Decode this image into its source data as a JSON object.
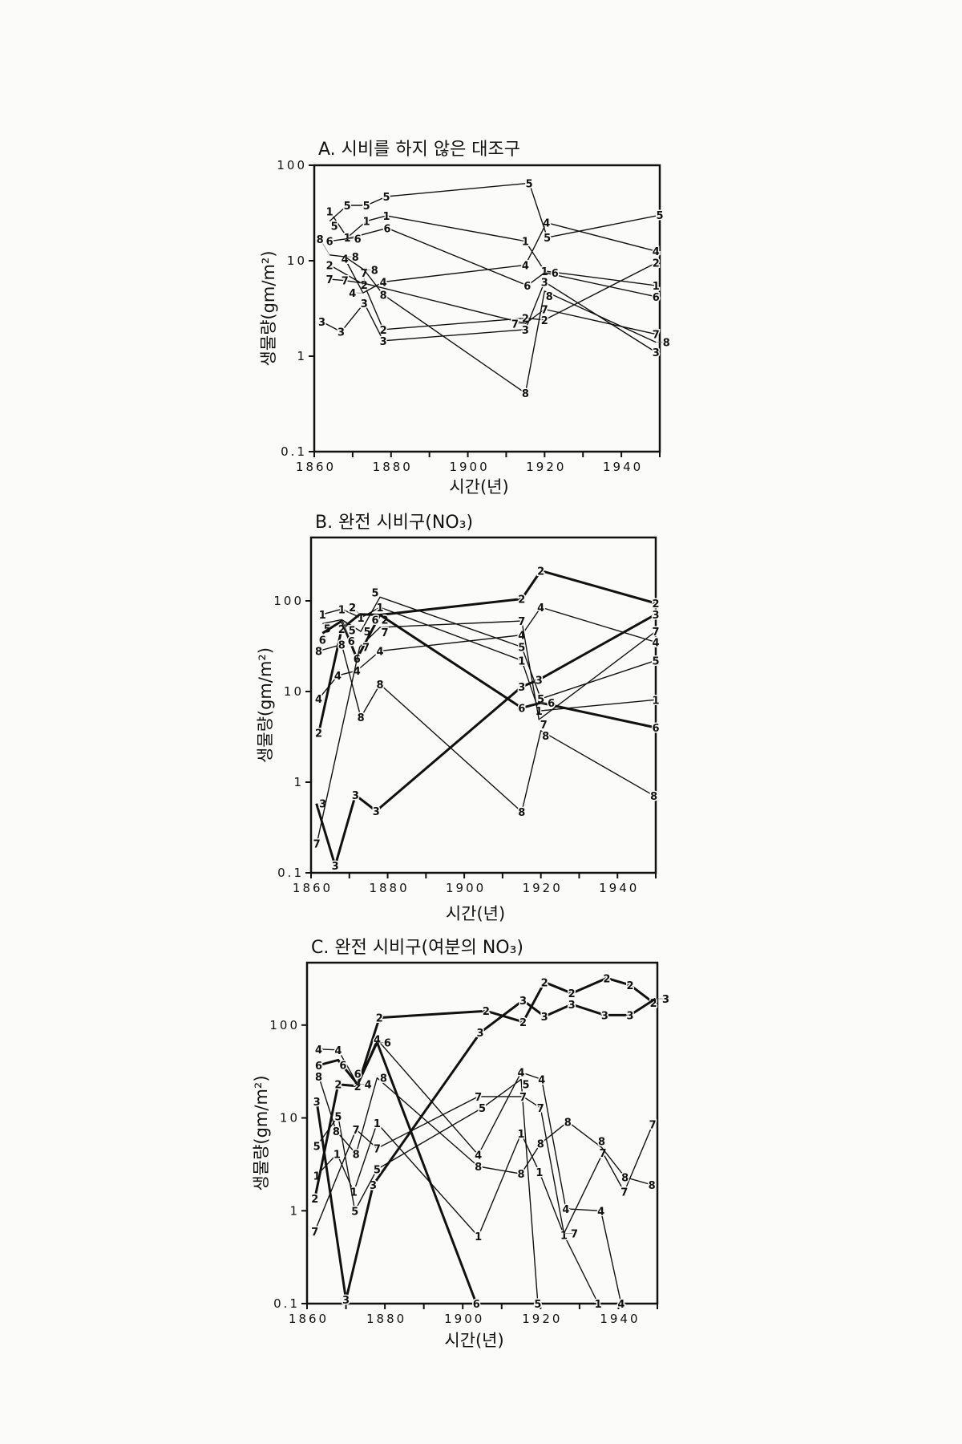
{
  "chart_data": [
    {
      "type": "line",
      "title": "A. 시비를 하지 않은 대조구",
      "xlabel": "시간(년)",
      "ylabel": "생물량(gm/m²)",
      "yscale": "log",
      "xlim": [
        1860,
        1950
      ],
      "ylim": [
        0.1,
        100
      ],
      "xticks": [
        "1860",
        "1880",
        "1900",
        "1920",
        "1940"
      ],
      "yticks": [
        "0.1",
        "1",
        "10",
        "100"
      ],
      "thick_series": [],
      "series": [
        {
          "name": "1",
          "points": [
            [
              1864,
              33
            ],
            [
              1868.6,
              17.5
            ],
            [
              1873.6,
              26
            ],
            [
              1878.8,
              29.6
            ],
            [
              1915,
              16
            ],
            [
              1920,
              7.8
            ],
            [
              1949,
              5.5
            ]
          ]
        },
        {
          "name": "2",
          "points": [
            [
              1864,
              9
            ],
            [
              1873,
              5.6
            ],
            [
              1878,
              1.9
            ],
            [
              1915,
              2.5
            ],
            [
              1920,
              2.4
            ],
            [
              1949,
              9.5
            ]
          ]
        },
        {
          "name": "3",
          "points": [
            [
              1862,
              2.3
            ],
            [
              1867,
              1.8
            ],
            [
              1873,
              3.6
            ],
            [
              1878,
              1.45
            ],
            [
              1915,
              1.9
            ],
            [
              1920,
              6
            ],
            [
              1949,
              1.1
            ]
          ]
        },
        {
          "name": "4",
          "points": [
            [
              1868,
              10.5
            ],
            [
              1872.7,
              4.6
            ],
            [
              1878,
              6
            ],
            [
              1915,
              9
            ],
            [
              1920.5,
              25
            ],
            [
              1949,
              12.6
            ]
          ]
        },
        {
          "name": "5",
          "points": [
            [
              1864,
              26
            ],
            [
              1868.6,
              38
            ],
            [
              1873.6,
              38
            ],
            [
              1878.8,
              47
            ],
            [
              1916,
              65
            ],
            [
              1920.7,
              17.5
            ],
            [
              1950,
              30
            ]
          ]
        },
        {
          "name": "6",
          "points": [
            [
              1864,
              16
            ],
            [
              1868.6,
              17
            ],
            [
              1879,
              22
            ],
            [
              1915.5,
              5.5
            ],
            [
              1920,
              7.5
            ],
            [
              1949,
              4.2
            ]
          ]
        },
        {
          "name": "7",
          "points": [
            [
              1864,
              6.4
            ],
            [
              1868,
              6.2
            ],
            [
              1873,
              5.8
            ],
            [
              1915,
              2.2
            ],
            [
              1920,
              3.1
            ],
            [
              1949,
              1.7
            ]
          ]
        },
        {
          "name": "8",
          "points": [
            [
              1864,
              11.5
            ],
            [
              1868,
              11
            ],
            [
              1873,
              8
            ],
            [
              1878,
              4.4
            ],
            [
              1915,
              0.41
            ],
            [
              1920,
              4.8
            ],
            [
              1949,
              1.4
            ]
          ]
        }
      ]
    },
    {
      "type": "line",
      "title": "B. 완전 시비구(NO₃)",
      "xlabel": "시간(년)",
      "ylabel": "생물량(gm/m²)",
      "yscale": "log",
      "xlim": [
        1860,
        1950
      ],
      "ylim": [
        0.1,
        500
      ],
      "xticks": [
        "1860",
        "1880",
        "1900",
        "1920",
        "1940"
      ],
      "yticks": [
        "0.1",
        "1",
        "10",
        "100"
      ],
      "thick_series": [
        "2",
        "3",
        "6"
      ],
      "series": [
        {
          "name": "1",
          "points": [
            [
              1863,
              71
            ],
            [
              1868,
              81
            ],
            [
              1873,
              65
            ],
            [
              1878,
              85
            ],
            [
              1915,
              22
            ],
            [
              1919.5,
              6.1
            ],
            [
              1950,
              8.1
            ]
          ]
        },
        {
          "name": "2",
          "points": [
            [
              1862,
              3.5
            ],
            [
              1868,
              49
            ],
            [
              1872.7,
              71
            ],
            [
              1878,
              70
            ],
            [
              1915,
              105
            ],
            [
              1920,
              215
            ],
            [
              1950,
              94
            ]
          ]
        },
        {
          "name": "3",
          "points": [
            [
              1861.4,
              0.58
            ],
            [
              1866.3,
              0.12
            ],
            [
              1871.6,
              0.72
            ],
            [
              1877,
              0.48
            ],
            [
              1915,
              11.3
            ],
            [
              1919.5,
              13.5
            ],
            [
              1950,
              71
            ]
          ]
        },
        {
          "name": "4",
          "points": [
            [
              1862,
              8.3
            ],
            [
              1867,
              15
            ],
            [
              1872,
              17
            ],
            [
              1878,
              28
            ],
            [
              1915,
              42
            ],
            [
              1920,
              85
            ],
            [
              1950,
              35
            ]
          ]
        },
        {
          "name": "5",
          "points": [
            [
              1863,
              56
            ],
            [
              1868,
              62
            ],
            [
              1873,
              46
            ],
            [
              1878,
              110
            ],
            [
              1915,
              31
            ],
            [
              1920,
              8.3
            ],
            [
              1950,
              22
            ]
          ]
        },
        {
          "name": "6",
          "points": [
            [
              1863,
              44
            ],
            [
              1868,
              60
            ],
            [
              1872,
              23
            ],
            [
              1878,
              70
            ],
            [
              1915,
              6.6
            ],
            [
              1920,
              7.5
            ],
            [
              1950,
              4.0
            ]
          ]
        },
        {
          "name": "7",
          "points": [
            [
              1861.5,
              0.21
            ],
            [
              1872.7,
              31
            ],
            [
              1878,
              51
            ],
            [
              1915,
              60
            ],
            [
              1919.5,
              4.9
            ],
            [
              1950,
              46
            ]
          ]
        },
        {
          "name": "8",
          "points": [
            [
              1862,
              28
            ],
            [
              1868,
              33
            ],
            [
              1873,
              5.2
            ],
            [
              1878,
              12
            ],
            [
              1915,
              0.47
            ],
            [
              1920,
              3.7
            ],
            [
              1949.5,
              0.71
            ]
          ]
        }
      ]
    },
    {
      "type": "line",
      "title": "C. 완전 시비구(여분의 NO₃)",
      "xlabel": "시간(년)",
      "ylabel": "생물량(gm/m²)",
      "yscale": "log",
      "xlim": [
        1860,
        1950
      ],
      "ylim": [
        0.1,
        470
      ],
      "xticks": [
        "1860",
        "1880",
        "1900",
        "1920",
        "1940"
      ],
      "yticks": [
        "0.1",
        "1",
        "10",
        "100"
      ],
      "thick_series": [
        "2",
        "3",
        "6"
      ],
      "series": [
        {
          "name": "1",
          "points": [
            [
              1862.5,
              2.4
            ],
            [
              1867.7,
              4.1
            ],
            [
              1872,
              1.6
            ],
            [
              1878,
              8.8
            ],
            [
              1904,
              0.53
            ],
            [
              1915,
              6.8
            ],
            [
              1919.7,
              2.6
            ],
            [
              1926,
              0.55
            ],
            [
              1934.8,
              0.1
            ]
          ]
        },
        {
          "name": "2",
          "points": [
            [
              1862,
              1.35
            ],
            [
              1868,
              23
            ],
            [
              1873,
              22
            ],
            [
              1878.6,
              120
            ],
            [
              1906,
              142
            ],
            [
              1915.5,
              108
            ],
            [
              1921,
              290
            ],
            [
              1928,
              220
            ],
            [
              1937,
              320
            ],
            [
              1943,
              270
            ],
            [
              1949,
              174
            ]
          ]
        },
        {
          "name": "3",
          "points": [
            [
              1862.5,
              15
            ],
            [
              1870,
              0.11
            ],
            [
              1877,
              1.9
            ],
            [
              1904.5,
              83
            ],
            [
              1915.5,
              185
            ],
            [
              1921,
              124
            ],
            [
              1928,
              167
            ],
            [
              1936.5,
              128
            ],
            [
              1943,
              128
            ],
            [
              1949.5,
              192
            ]
          ]
        },
        {
          "name": "4",
          "points": [
            [
              1863,
              55
            ],
            [
              1868,
              54
            ],
            [
              1873,
              23
            ],
            [
              1878,
              70
            ],
            [
              1904,
              4
            ],
            [
              1915,
              31
            ],
            [
              1920.3,
              26
            ],
            [
              1926.5,
              1.05
            ],
            [
              1935.5,
              1.0
            ],
            [
              1940.7,
              0.1
            ]
          ]
        },
        {
          "name": "5",
          "points": [
            [
              1862.5,
              5
            ],
            [
              1868,
              10.4
            ],
            [
              1872.3,
              1.0
            ],
            [
              1878,
              2.8
            ],
            [
              1905,
              12.8
            ],
            [
              1915,
              26
            ],
            [
              1919.3,
              0.1
            ]
          ]
        },
        {
          "name": "6",
          "points": [
            [
              1863,
              37
            ],
            [
              1868,
              42
            ],
            [
              1873,
              23
            ],
            [
              1878,
              65
            ],
            [
              1903.5,
              0.1
            ]
          ]
        },
        {
          "name": "7",
          "points": [
            [
              1862,
              0.6
            ],
            [
              1872.6,
              7.5
            ],
            [
              1878,
              4.7
            ],
            [
              1904,
              17
            ],
            [
              1915.5,
              17
            ],
            [
              1920,
              12.8
            ],
            [
              1926,
              0.57
            ],
            [
              1936,
              4.2
            ],
            [
              1941.5,
              1.6
            ],
            [
              1948.8,
              8.5
            ]
          ]
        },
        {
          "name": "8",
          "points": [
            [
              1863,
              28
            ],
            [
              1867.5,
              7.2
            ],
            [
              1872.6,
              4.1
            ],
            [
              1878,
              27
            ],
            [
              1904,
              3.0
            ],
            [
              1915,
              2.5
            ],
            [
              1920,
              5.3
            ],
            [
              1927,
              9.1
            ],
            [
              1935.7,
              4.8
            ],
            [
              1941.7,
              2.3
            ],
            [
              1948.6,
              1.9
            ]
          ]
        }
      ]
    }
  ]
}
